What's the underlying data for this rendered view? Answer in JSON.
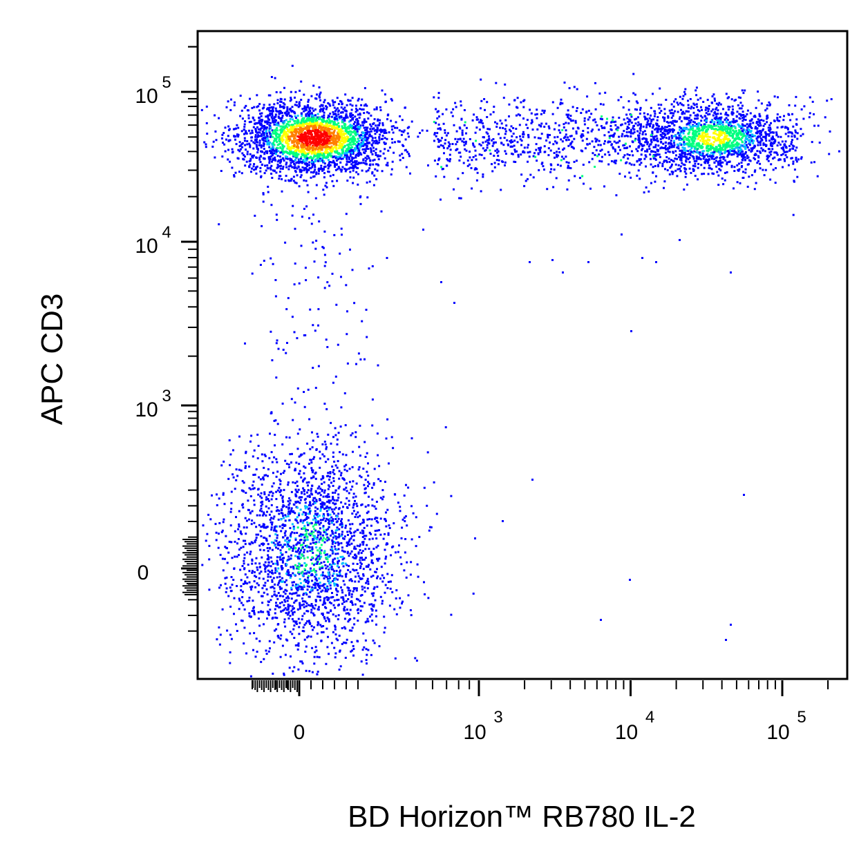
{
  "chart_data": {
    "type": "scatter",
    "plot_style": "flow cytometry pseudocolor density dot plot",
    "xlabel": "BD Horizon™ RB780 IL-2",
    "ylabel": "APC CD3",
    "x_scale": "biexponential (linear near 0, log above)",
    "y_scale": "biexponential (linear near 0, log above)",
    "x_ticks": [
      {
        "value": 0,
        "base": "0",
        "exp": ""
      },
      {
        "value": 1000,
        "base": "10",
        "exp": "3"
      },
      {
        "value": 10000,
        "base": "10",
        "exp": "4"
      },
      {
        "value": 100000,
        "base": "10",
        "exp": "5"
      }
    ],
    "y_ticks": [
      {
        "value": 0,
        "base": "0",
        "exp": ""
      },
      {
        "value": 1000,
        "base": "10",
        "exp": "3"
      },
      {
        "value": 10000,
        "base": "10",
        "exp": "4"
      },
      {
        "value": 100000,
        "base": "10",
        "exp": "5"
      }
    ],
    "xlim": [
      -300,
      250000
    ],
    "ylim": [
      -300,
      250000
    ],
    "density_colors": [
      "#0000ff",
      "#00bfff",
      "#00ff80",
      "#ffff00",
      "#ff8000",
      "#ff0000"
    ],
    "populations": [
      {
        "x_center": 60,
        "y_center": 50000,
        "density": "high (red core)"
      },
      {
        "x_center": 35000,
        "y_center": 50000,
        "density": "medium (green/yellow core)"
      },
      {
        "x_range": [
          1000,
          10000
        ],
        "y_center": 55000,
        "density": "sparse (blue)"
      },
      {
        "x_center": 40,
        "y_center": 40,
        "density": "medium (blue with cyan/green)"
      }
    ],
    "grid": false,
    "legend": "none"
  }
}
